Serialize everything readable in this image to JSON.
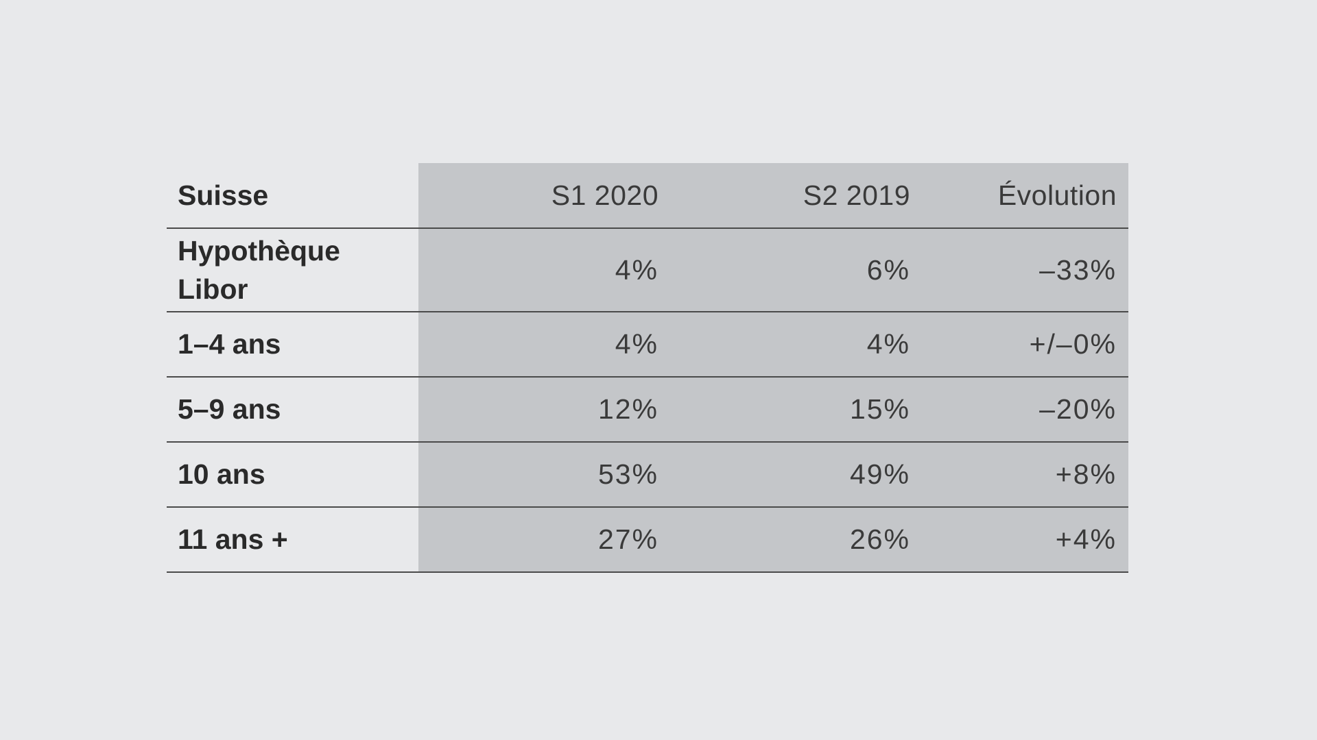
{
  "table": {
    "columns": [
      "Suisse",
      "S1 2020",
      "S2 2019",
      "Évolution"
    ],
    "rows": [
      {
        "label_lines": [
          "Hypothèque",
          "Libor"
        ],
        "s1_2020": "4%",
        "s2_2019": "6%",
        "evolution": "–33%"
      },
      {
        "label_lines": [
          "1–4 ans"
        ],
        "s1_2020": "4%",
        "s2_2019": "4%",
        "evolution": "+/–0%"
      },
      {
        "label_lines": [
          "5–9 ans"
        ],
        "s1_2020": "12%",
        "s2_2019": "15%",
        "evolution": "–20%"
      },
      {
        "label_lines": [
          "10 ans"
        ],
        "s1_2020": "53%",
        "s2_2019": "49%",
        "evolution": "+8%"
      },
      {
        "label_lines": [
          "11 ans +"
        ],
        "s1_2020": "27%",
        "s2_2019": "26%",
        "evolution": "+4%"
      }
    ]
  },
  "colors": {
    "background": "#e8e9eb",
    "value_column_fill": "#c4c6c9",
    "rule": "#4a4a4a",
    "text": "#2a2a2a"
  }
}
